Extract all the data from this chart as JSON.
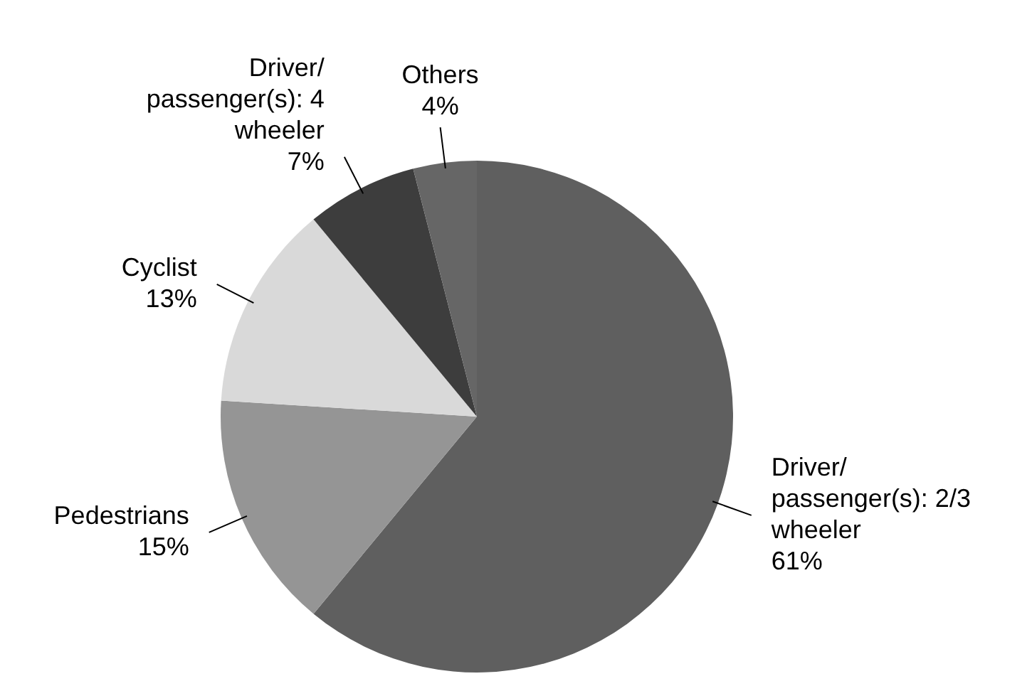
{
  "chart_data": {
    "type": "pie",
    "categories": [
      "Driver/ passenger(s): 2/3 wheeler",
      "Pedestrians",
      "Cyclist",
      "Driver/ passenger(s): 4 wheeler",
      "Others"
    ],
    "values": [
      61,
      15,
      13,
      7,
      4
    ],
    "value_labels": [
      "61%",
      "15%",
      "13%",
      "7%",
      "4%"
    ],
    "colors": [
      "#5f5f5f",
      "#959595",
      "#d9d9d9",
      "#3d3d3d",
      "#666666"
    ]
  }
}
